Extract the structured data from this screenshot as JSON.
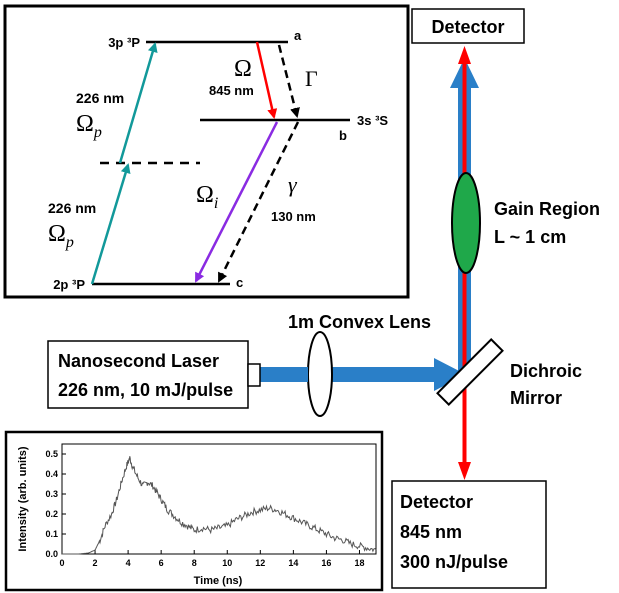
{
  "level_diagram": {
    "level_a_label": "3p ³P",
    "level_a_letter": "a",
    "level_b_label": "3s ³S",
    "level_b_letter": "b",
    "level_c_label": "2p ³P",
    "level_c_letter": "c",
    "pump_wavelength_upper": "226 nm",
    "pump_wavelength_lower": "226 nm",
    "omega_p_symbol": "Ω",
    "omega_p_subscript": "p",
    "omega_symbol": "Ω",
    "omega_wavelength": "845 nm",
    "gamma_big_symbol": "Γ",
    "gamma_small_symbol": "γ",
    "gamma_wavelength": "130 nm",
    "omega_i_symbol": "Ω",
    "omega_i_subscript": "i"
  },
  "setup": {
    "detector_top": "Detector",
    "gain_region_line1": "Gain Region",
    "gain_region_line2": "L ~ 1 cm",
    "lens_label": "1m Convex Lens",
    "laser_line1": "Nanosecond Laser",
    "laser_line2": "226 nm, 10 mJ/pulse",
    "mirror_line1": "Dichroic",
    "mirror_line2": "Mirror",
    "detector_bottom_line1": "Detector",
    "detector_bottom_line2": "845 nm",
    "detector_bottom_line3": "300 nJ/pulse"
  },
  "colors": {
    "pump_teal": "#12999a",
    "red_beam": "#ff0000",
    "blue_beam": "#2a7fc8",
    "purple": "#8a2be2",
    "green_gain": "#1fa84a"
  },
  "chart_data": {
    "type": "line",
    "title": "",
    "xlabel": "Time (ns)",
    "ylabel": "Intensity (arb. units)",
    "xlim": [
      0,
      19
    ],
    "ylim": [
      0,
      0.55
    ],
    "x_ticks": [
      "0",
      "2",
      "4",
      "6",
      "8",
      "10",
      "12",
      "14",
      "16",
      "18"
    ],
    "y_ticks": [
      "0.0",
      "0.1",
      "0.2",
      "0.3",
      "0.4",
      "0.5"
    ],
    "series": [
      {
        "x": [
          0,
          1.0,
          1.6,
          2.0,
          2.3,
          2.6,
          3.0,
          3.3,
          3.6,
          3.9,
          4.1,
          4.3,
          4.6,
          4.9,
          5.2,
          5.5,
          5.8,
          6.1,
          6.4,
          6.8,
          7.2,
          7.6,
          8.0,
          8.5,
          9.0,
          9.5,
          10.0,
          10.5,
          11.0,
          11.5,
          12.0,
          12.5,
          13.0,
          13.5,
          14.0,
          14.5,
          15.0,
          15.5,
          16.0,
          16.5,
          17.0,
          17.5,
          18.0,
          18.5,
          19.0
        ],
        "values": [
          0.0,
          0.0,
          0.005,
          0.02,
          0.07,
          0.14,
          0.2,
          0.27,
          0.36,
          0.44,
          0.48,
          0.43,
          0.38,
          0.34,
          0.36,
          0.34,
          0.3,
          0.26,
          0.22,
          0.19,
          0.16,
          0.14,
          0.12,
          0.13,
          0.12,
          0.13,
          0.14,
          0.17,
          0.19,
          0.21,
          0.22,
          0.23,
          0.22,
          0.2,
          0.18,
          0.16,
          0.14,
          0.12,
          0.1,
          0.08,
          0.07,
          0.05,
          0.04,
          0.03,
          0.02
        ]
      }
    ]
  }
}
